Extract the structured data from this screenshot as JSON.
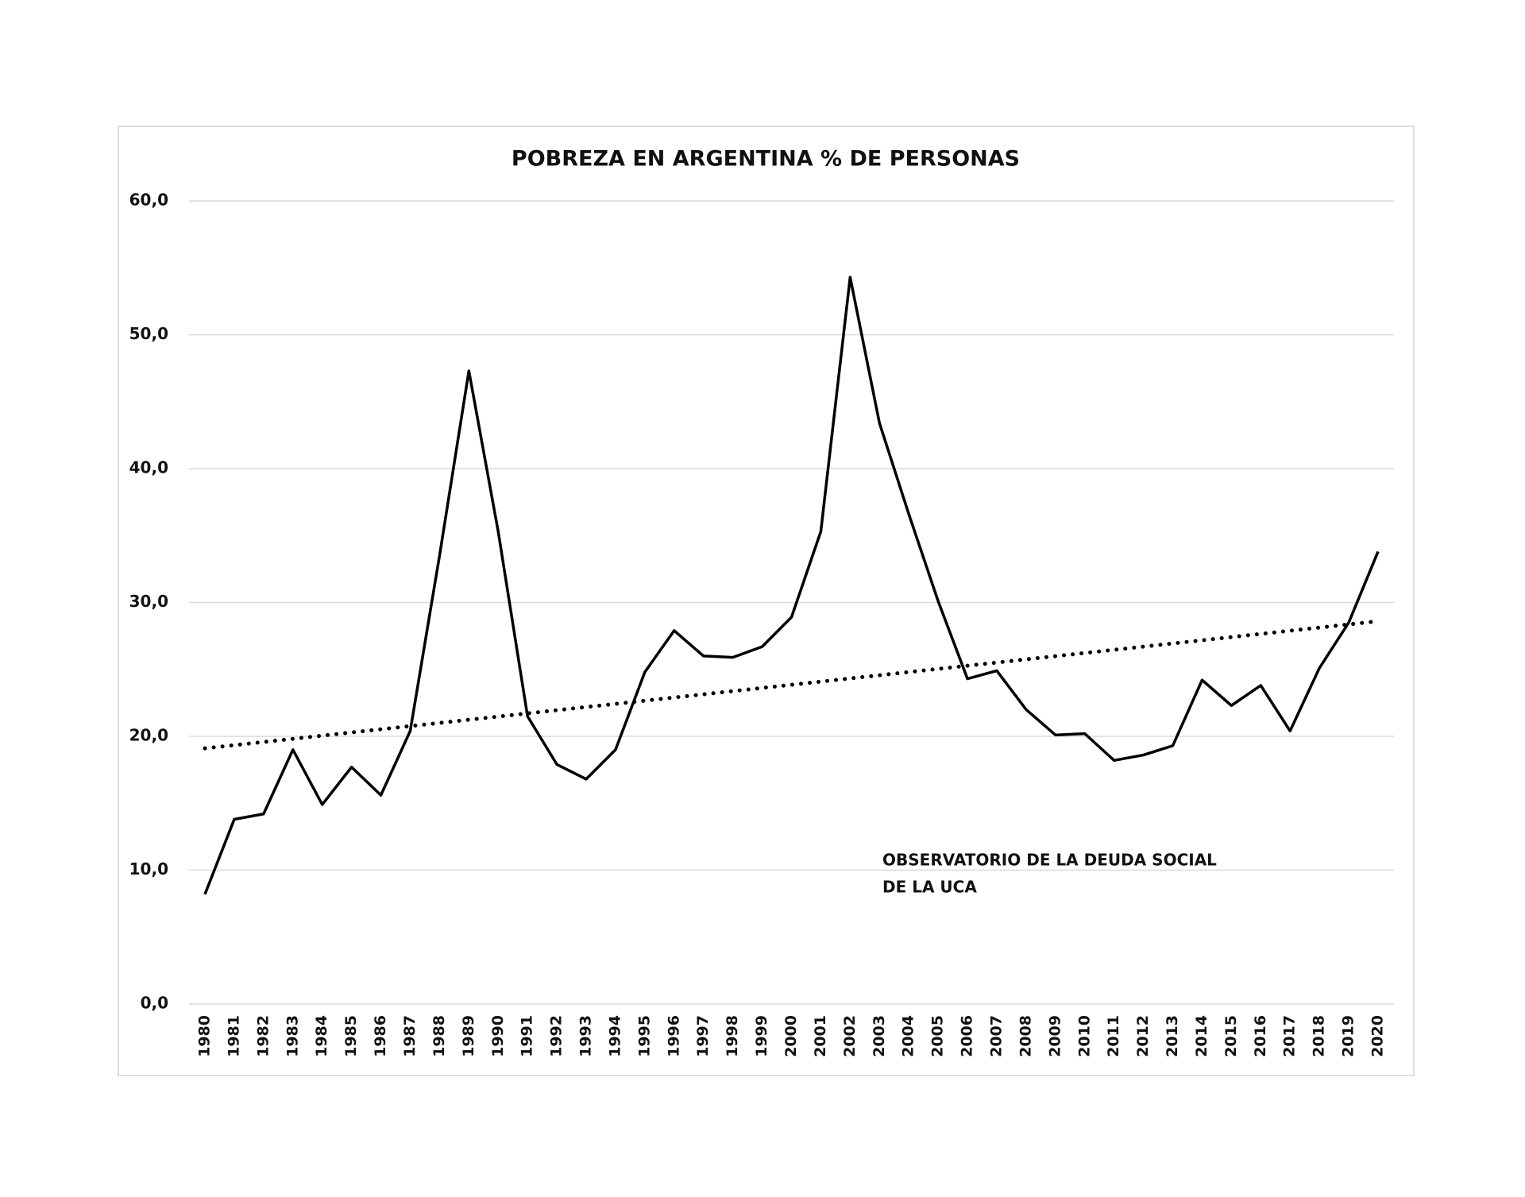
{
  "chart_data": {
    "type": "line",
    "title": "POBREZA EN ARGENTINA % DE PERSONAS",
    "x": [
      1980,
      1981,
      1982,
      1983,
      1984,
      1985,
      1986,
      1987,
      1988,
      1989,
      1990,
      1991,
      1992,
      1993,
      1994,
      1995,
      1996,
      1997,
      1998,
      1999,
      2000,
      2001,
      2002,
      2003,
      2004,
      2005,
      2006,
      2007,
      2008,
      2009,
      2010,
      2011,
      2012,
      2013,
      2014,
      2015,
      2016,
      2017,
      2018,
      2019,
      2020
    ],
    "series": [
      {
        "color": "#000000",
        "values": [
          8.2,
          13.8,
          14.2,
          19.0,
          14.9,
          17.7,
          15.6,
          20.4,
          33.5,
          47.3,
          35.3,
          21.5,
          17.9,
          16.8,
          19.0,
          24.8,
          27.9,
          26.0,
          25.9,
          26.7,
          28.9,
          35.3,
          54.3,
          43.4,
          36.6,
          30.1,
          24.3,
          24.9,
          22.0,
          20.1,
          20.2,
          18.2,
          18.6,
          19.3,
          24.2,
          22.3,
          23.8,
          20.4,
          25.1,
          28.5,
          33.8
        ]
      }
    ],
    "trendline": {
      "x": [
        1980,
        2020
      ],
      "values": [
        19.1,
        28.6
      ],
      "color": "#000000",
      "style": "dotted"
    },
    "xlim": [
      1980,
      2020
    ],
    "xticks": [
      1980,
      1981,
      1982,
      1983,
      1984,
      1985,
      1986,
      1987,
      1988,
      1989,
      1990,
      1991,
      1992,
      1993,
      1994,
      1995,
      1996,
      1997,
      1998,
      1999,
      2000,
      2001,
      2002,
      2003,
      2004,
      2005,
      2006,
      2007,
      2008,
      2009,
      2010,
      2011,
      2012,
      2013,
      2014,
      2015,
      2016,
      2017,
      2018,
      2019,
      2020
    ],
    "ylim": [
      0,
      60
    ],
    "yticks": [
      {
        "value": 0,
        "label": "0,0"
      },
      {
        "value": 10,
        "label": "10,0"
      },
      {
        "value": 20,
        "label": "20,0"
      },
      {
        "value": 30,
        "label": "30,0"
      },
      {
        "value": 40,
        "label": "40,0"
      },
      {
        "value": 50,
        "label": "50,0"
      },
      {
        "value": 60,
        "label": "60,0"
      }
    ],
    "grid": true,
    "annotation": [
      "OBSERVATORIO DE LA DEUDA SOCIAL",
      "DE LA UCA"
    ]
  }
}
